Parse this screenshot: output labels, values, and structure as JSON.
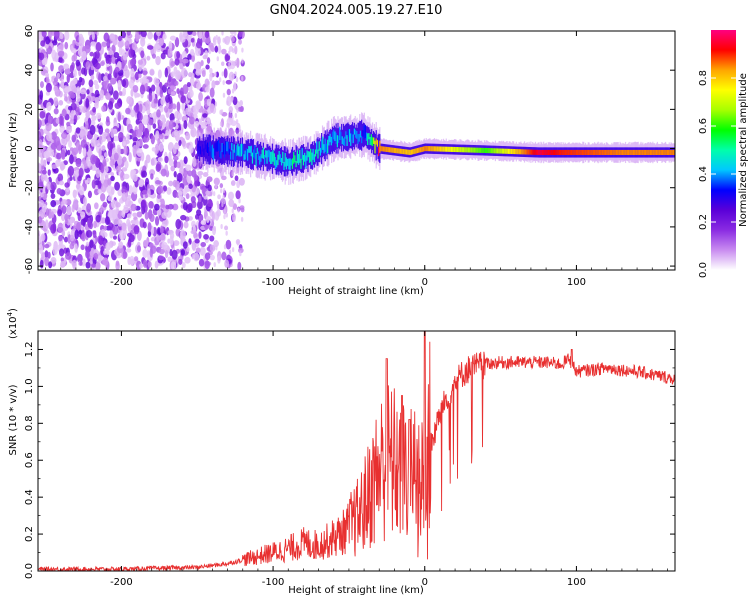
{
  "chart_data": [
    {
      "type": "heatmap",
      "title": "GN04.2024.005.19.27.E10",
      "xlabel": "Height of straight line (km)",
      "ylabel": "Frequency (Hz)",
      "xlim": [
        -255,
        165
      ],
      "ylim": [
        -62,
        60
      ],
      "xticks": [
        -200,
        -100,
        0,
        100
      ],
      "yticks": [
        60,
        40,
        20,
        0,
        -20,
        -40,
        -60
      ],
      "colorbar": {
        "label": "Normalized spectral amplitude",
        "range": [
          0.0,
          1.0
        ],
        "ticks": [
          "0.0",
          "0.2",
          "0.4",
          "0.6",
          "0.8"
        ],
        "colormap": [
          "#ffffff",
          "#c98cf0",
          "#8a2be2",
          "#5a00d8",
          "#0000ff",
          "#00c8ff",
          "#00ffaa",
          "#00ff00",
          "#a8ff00",
          "#ffff00",
          "#ffa500",
          "#ff0000",
          "#ff0080"
        ]
      },
      "features": [
        {
          "name": "broadband noise",
          "x_range": [
            -255,
            -140
          ],
          "freq_range": [
            -60,
            60
          ],
          "level": 0.15
        },
        {
          "name": "signal band",
          "points": [
            {
              "x": -150,
              "f": 0,
              "level": 0.3
            },
            {
              "x": -120,
              "f": -2,
              "level": 0.4
            },
            {
              "x": -90,
              "f": -7,
              "level": 0.45
            },
            {
              "x": -75,
              "f": -4,
              "level": 0.45
            },
            {
              "x": -60,
              "f": 5,
              "level": 0.4
            },
            {
              "x": -40,
              "f": 7,
              "level": 0.35
            },
            {
              "x": -30,
              "f": 0,
              "level": 0.85
            },
            {
              "x": -10,
              "f": -2,
              "level": 0.8
            },
            {
              "x": 0,
              "f": 0,
              "level": 0.85
            },
            {
              "x": 40,
              "f": -1,
              "level": 0.6
            },
            {
              "x": 75,
              "f": -2,
              "level": 0.95
            },
            {
              "x": 90,
              "f": -2,
              "level": 0.9
            },
            {
              "x": 130,
              "f": -2,
              "level": 0.85
            },
            {
              "x": 165,
              "f": -2,
              "level": 0.85
            }
          ]
        }
      ]
    },
    {
      "type": "line",
      "xlabel": "Height of straight line (km)",
      "ylabel": "SNR (10 * v/v)",
      "y_multiplier": "(x10",
      "y_multiplier_exp": "4",
      "y_multiplier_close": ")",
      "xlim": [
        -255,
        165
      ],
      "ylim": [
        0.0,
        1.3
      ],
      "xticks": [
        -200,
        -100,
        0,
        100
      ],
      "yticks": [
        "0.0",
        "0.2",
        "0.4",
        "0.6",
        "0.8",
        "1.0",
        "1.2"
      ],
      "color": "#e83030",
      "series": [
        {
          "name": "SNR",
          "x": [
            -255,
            -200,
            -150,
            -130,
            -110,
            -90,
            -80,
            -70,
            -55,
            -45,
            -40,
            -35,
            -30,
            -25,
            -20,
            -15,
            -10,
            -5,
            -2,
            0,
            2,
            5,
            10,
            15,
            20,
            25,
            30,
            40,
            50,
            60,
            80,
            90,
            95,
            100,
            120,
            140,
            165
          ],
          "values": [
            0.01,
            0.01,
            0.02,
            0.04,
            0.08,
            0.12,
            0.15,
            0.14,
            0.2,
            0.28,
            0.35,
            0.45,
            0.55,
            0.6,
            0.58,
            0.55,
            0.5,
            0.55,
            0.5,
            0.5,
            0.75,
            0.7,
            0.85,
            0.95,
            1.02,
            1.07,
            1.1,
            1.12,
            1.13,
            1.13,
            1.13,
            1.12,
            1.15,
            1.08,
            1.1,
            1.08,
            1.04
          ]
        }
      ],
      "spikes": [
        {
          "x": -25,
          "value": 1.15
        },
        {
          "x": -15,
          "value": 0.95
        },
        {
          "x": -10,
          "value": 0.82
        },
        {
          "x": 0,
          "value": 1.3
        },
        {
          "x": 97,
          "value": 1.2
        }
      ]
    }
  ]
}
